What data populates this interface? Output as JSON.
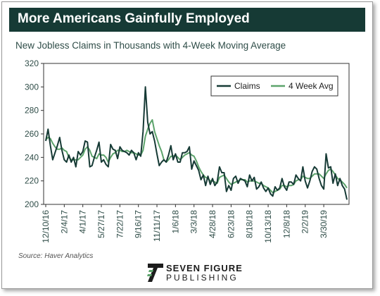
{
  "header": {
    "title": "More Americans Gainfully Employed",
    "subtitle": "New Jobless Claims in Thousands with 4-Week Moving Average"
  },
  "footer": {
    "source": "Source: Haver Analytics",
    "brand_line1": "SEVEN FIGURE",
    "brand_line2": "PUBLISHING"
  },
  "colors": {
    "title_bar": "#163a35",
    "claims": "#163a35",
    "avg": "#5ca36b"
  },
  "chart_data": {
    "type": "line",
    "title": "",
    "xlabel": "",
    "ylabel": "",
    "ylim": [
      200,
      320
    ],
    "y_ticks": [
      200,
      220,
      240,
      260,
      280,
      300,
      320
    ],
    "x_tick_labels": [
      "12/10/16",
      "2/4/17",
      "4/1/17",
      "5/27/17",
      "7/22/17",
      "9/16/17",
      "11/11/17",
      "1/6/18",
      "3/3/18",
      "4/28/18",
      "6/23/18",
      "8/18/18",
      "10/13/18",
      "12/8/18",
      "2/2/19",
      "3/30/19"
    ],
    "x_tick_every_weeks": 8,
    "grid": false,
    "legend_position": "top-right",
    "series": [
      {
        "name": "Claims",
        "values": [
          254,
          264,
          250,
          238,
          244,
          250,
          257,
          246,
          238,
          236,
          242,
          236,
          240,
          232,
          245,
          242,
          245,
          254,
          253,
          232,
          233,
          240,
          246,
          253,
          236,
          238,
          234,
          232,
          251,
          247,
          246,
          239,
          249,
          246,
          245,
          244,
          242,
          246,
          244,
          238,
          244,
          241,
          262,
          300,
          270,
          260,
          262,
          254,
          243,
          233,
          236,
          238,
          236,
          242,
          250,
          238,
          243,
          236,
          236,
          244,
          244,
          245,
          249,
          230,
          237,
          233,
          229,
          221,
          225,
          216,
          224,
          217,
          222,
          216,
          219,
          232,
          227,
          227,
          211,
          216,
          212,
          222,
          224,
          218,
          222,
          221,
          220,
          215,
          225,
          220,
          223,
          213,
          215,
          219,
          214,
          211,
          214,
          209,
          207,
          215,
          212,
          214,
          222,
          215,
          212,
          219,
          219,
          217,
          225,
          222,
          220,
          232,
          220,
          214,
          220,
          228,
          232,
          230,
          222,
          216,
          213,
          243,
          231,
          232,
          218,
          226,
          216,
          222,
          216,
          213,
          204
        ]
      },
      {
        "name": "4 Week Avg",
        "values": [
          255,
          257,
          256,
          252,
          249,
          247,
          247,
          248,
          246,
          245,
          240,
          238,
          238,
          238,
          238,
          240,
          242,
          247,
          249,
          246,
          241,
          240,
          239,
          243,
          242,
          242,
          240,
          236,
          240,
          243,
          244,
          246,
          246,
          245,
          245,
          246,
          245,
          244,
          244,
          243,
          242,
          242,
          246,
          258,
          264,
          269,
          272,
          262,
          256,
          250,
          245,
          238,
          236,
          238,
          241,
          241,
          242,
          240,
          238,
          240,
          242,
          243,
          244,
          242,
          241,
          237,
          232,
          228,
          225,
          223,
          222,
          220,
          220,
          219,
          218,
          223,
          224,
          225,
          222,
          219,
          217,
          218,
          219,
          220,
          221,
          221,
          221,
          219,
          220,
          220,
          220,
          219,
          218,
          218,
          216,
          215,
          214,
          212,
          210,
          211,
          212,
          213,
          216,
          216,
          215,
          216,
          216,
          217,
          220,
          221,
          221,
          224,
          223,
          222,
          222,
          224,
          226,
          226,
          226,
          224,
          222,
          226,
          229,
          230,
          228,
          225,
          222,
          221,
          219,
          217,
          214
        ]
      }
    ]
  }
}
